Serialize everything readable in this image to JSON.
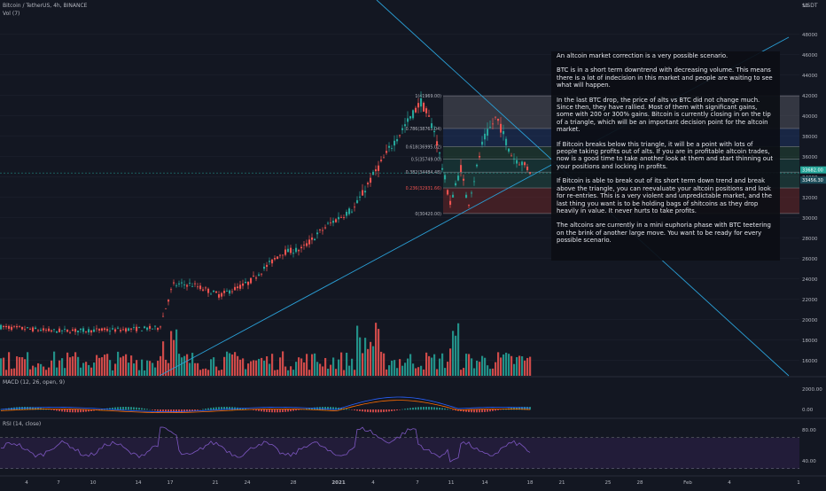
{
  "header": {
    "symbol": "Bitcoin / TetherUS, 4h, BINANCE",
    "volume_label": "Vol (7)",
    "currency": "USDT"
  },
  "note": {
    "paragraphs": [
      "An altcoin market correction is a very possible scenario.",
      "BTC is in a short term downtrend with decreasing volume. This means there is a lot of indecision in this market and people are waiting to see what will happen.",
      "In the last BTC drop, the price of alts vs BTC did not change much. Since then, they have rallied. Most of them with significant gains, some with 200 or 300% gains. Bitcoin is currently closing in on the tip of a triangle, which will be an important decision point for the altcoin market.",
      "If Bitcoin breaks below this triangle, it will be a point with lots of people taking profits out of alts. If you are in profitable altcoin trades, now is a good time to take another look at them and start thinning out your positions and locking in profits.",
      "If Bitcoin is able to break out of its short term down trend and break above the triangle, you can reevaluate your altcoin positions and look for re-entries. This is a very violent and unpredictable market, and the last thing you want is to be holding bags of shitcoins as they drop heavily in value. It never hurts to take profits.",
      "The altcoins are currently in a mini euphoria phase with BTC teetering on the brink of another large move. You want to be ready for every possible scenario."
    ]
  },
  "colors": {
    "background": "#131722",
    "up": "#26a69a",
    "down": "#ef5350",
    "trendline": "#2a9fd6",
    "rsi_line": "#7e57c2",
    "macd_line": "#2962ff",
    "signal_line": "#ff6d00",
    "grid": "#1f2330"
  },
  "chart_data": [
    {
      "type": "candlestick",
      "title": "Bitcoin / TetherUS, 4h, BINANCE",
      "y_axis_ticks": [
        16000,
        18000,
        20000,
        22000,
        24000,
        26000,
        28000,
        30000,
        32000,
        34000,
        36000,
        38000,
        40000,
        42000,
        44000,
        46000,
        48000
      ],
      "y_axis_top_label": "50",
      "x_axis_ticks": [
        "4",
        "7",
        "10",
        "14",
        "17",
        "21",
        "24",
        "28",
        "2021",
        "4",
        "7",
        "11",
        "14",
        "18",
        "21",
        "25",
        "28",
        "Feb",
        "4",
        "1"
      ],
      "ylim": [
        14500,
        50500
      ],
      "price_labels": [
        "33682.00",
        "33456.30"
      ],
      "trend": {
        "start_price": 19300,
        "rally_to_price": 41900,
        "last_price": 34400
      },
      "fibonacci": {
        "levels": [
          {
            "label": "1(41969.00)",
            "ratio": 1,
            "price": 41969
          },
          {
            "label": "0.786(38763.04)",
            "ratio": 0.786,
            "price": 38763.04
          },
          {
            "label": "0.618(36995.02)",
            "ratio": 0.618,
            "price": 36995.02
          },
          {
            "label": "0.5(35749.00)",
            "ratio": 0.5,
            "price": 35749
          },
          {
            "label": "0.382(34484.48)",
            "ratio": 0.382,
            "price": 34484.48
          },
          {
            "label": "0.236(32931.66)",
            "ratio": 0.236,
            "price": 32931.66
          },
          {
            "label": "0(30420.00)",
            "ratio": 0,
            "price": 30420
          }
        ]
      }
    },
    {
      "type": "bar",
      "title": "Vol (7)"
    },
    {
      "type": "line",
      "title": "MACD (12, 26, open, 9)",
      "y_axis_ticks": [
        "2000.00",
        "0.00"
      ],
      "series": [
        {
          "name": "MACD"
        },
        {
          "name": "Signal"
        }
      ]
    },
    {
      "type": "line",
      "title": "RSI (14, close)",
      "y_axis_ticks": [
        "80.00",
        "40.00"
      ],
      "bands": [
        30,
        70
      ],
      "series": [
        {
          "name": "RSI"
        }
      ]
    }
  ]
}
